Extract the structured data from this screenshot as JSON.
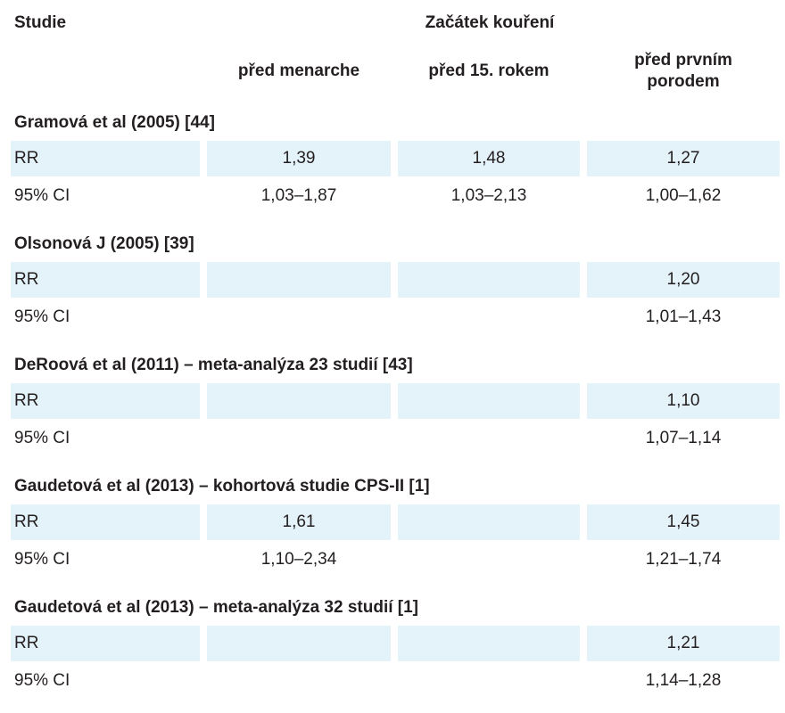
{
  "header": {
    "study_col": "Studie",
    "group_title": "Začátek kouření",
    "col1": "před menarche",
    "col2": "před 15. rokem",
    "col3_line1": "před prvním",
    "col3_line2": "porodem"
  },
  "studies": [
    {
      "title": "Gramová et al (2005) [44]",
      "rr": {
        "label": "RR",
        "c1": "1,39",
        "c2": "1,48",
        "c3": "1,27"
      },
      "ci": {
        "label": "95% CI",
        "c1": "1,03–1,87",
        "c2": "1,03–2,13",
        "c3": "1,00–1,62"
      }
    },
    {
      "title": "Olsonová J (2005) [39]",
      "rr": {
        "label": "RR",
        "c1": "",
        "c2": "",
        "c3": "1,20"
      },
      "ci": {
        "label": "95% CI",
        "c1": "",
        "c2": "",
        "c3": "1,01–1,43"
      }
    },
    {
      "title": "DeRoová et al (2011) – meta-analýza 23 studií [43]",
      "rr": {
        "label": "RR",
        "c1": "",
        "c2": "",
        "c3": "1,10"
      },
      "ci": {
        "label": "95% CI",
        "c1": "",
        "c2": "",
        "c3": "1,07–1,14"
      }
    },
    {
      "title": "Gaudetová et al (2013) – kohortová studie CPS-II [1]",
      "rr": {
        "label": "RR",
        "c1": "1,61",
        "c2": "",
        "c3": "1,45"
      },
      "ci": {
        "label": "95% CI",
        "c1": "1,10–2,34",
        "c2": "",
        "c3": "1,21–1,74"
      }
    },
    {
      "title": "Gaudetová et al (2013) – meta-analýza 32 studií [1]",
      "rr": {
        "label": "RR",
        "c1": "",
        "c2": "",
        "c3": "1,21"
      },
      "ci": {
        "label": "95% CI",
        "c1": "",
        "c2": "",
        "c3": "1,14–1,28"
      }
    }
  ],
  "colors": {
    "row_shade": "#e4f2f9",
    "text": "#231f20"
  }
}
